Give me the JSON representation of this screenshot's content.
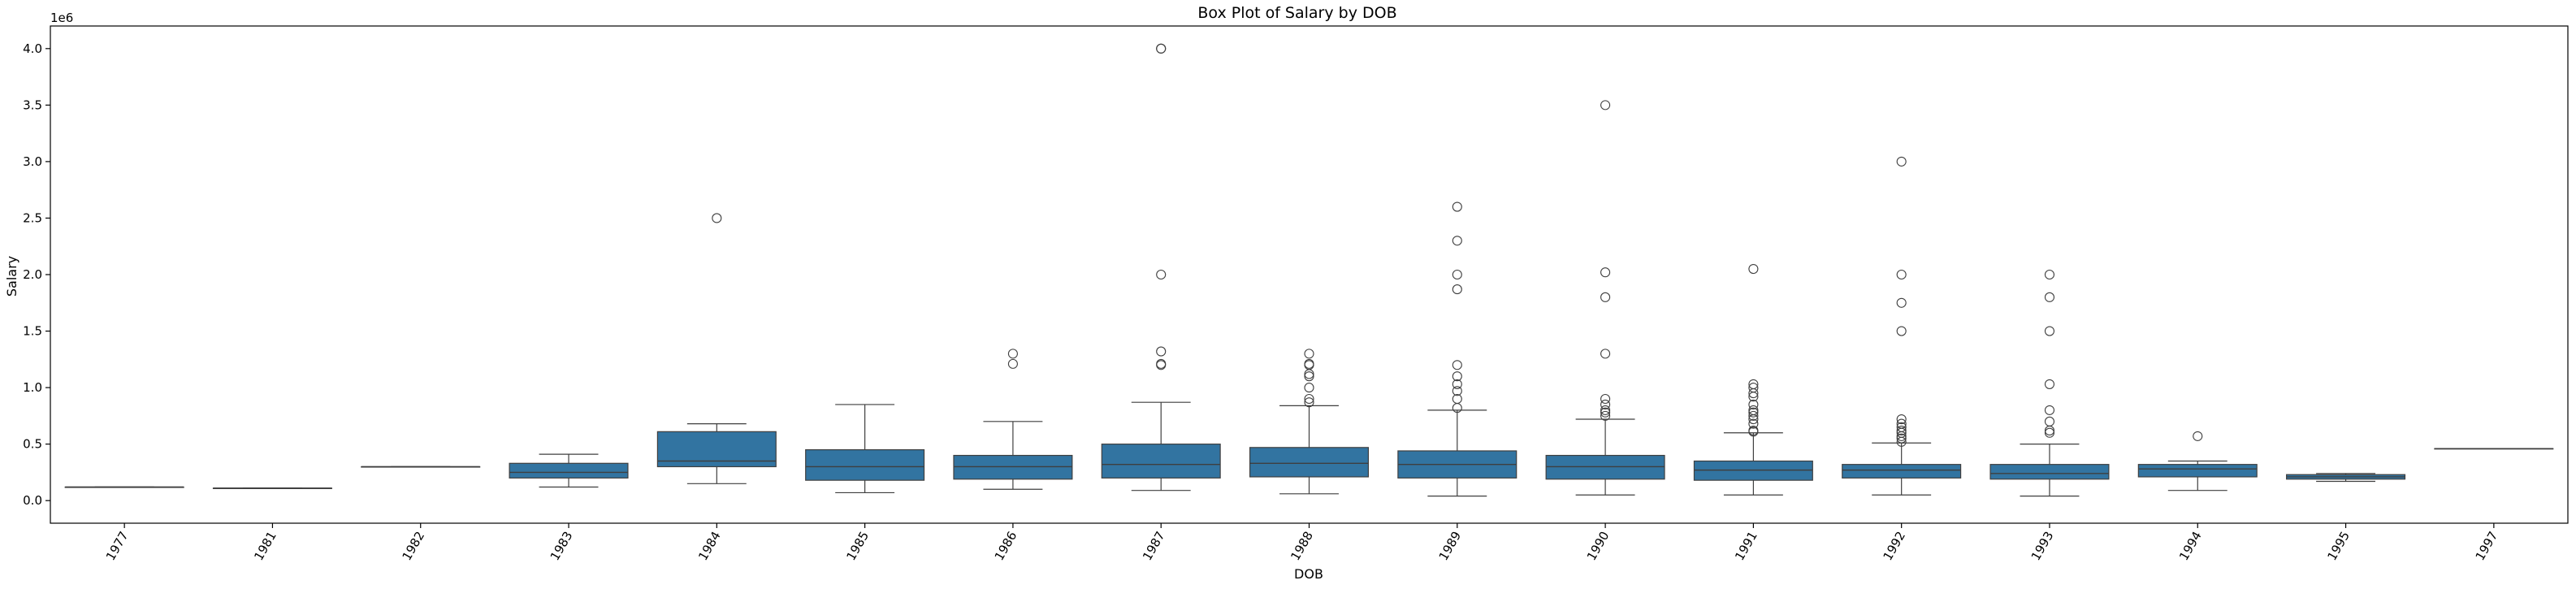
{
  "chart_data": {
    "type": "box",
    "title": "Box Plot of Salary by DOB",
    "xlabel": "DOB",
    "ylabel": "Salary",
    "y_offset_label": "1e6",
    "ylim": [
      -0.2,
      4.2
    ],
    "y_ticks": [
      0.0,
      0.5,
      1.0,
      1.5,
      2.0,
      2.5,
      3.0,
      3.5,
      4.0
    ],
    "y_tick_labels": [
      "0.0",
      "0.5",
      "1.0",
      "1.5",
      "2.0",
      "2.5",
      "3.0",
      "3.5",
      "4.0"
    ],
    "grid": false,
    "box_color": "#3274a1",
    "edge_color": "#3f3f3f",
    "categories": [
      "1977",
      "1981",
      "1982",
      "1983",
      "1984",
      "1985",
      "1986",
      "1987",
      "1988",
      "1989",
      "1990",
      "1991",
      "1992",
      "1993",
      "1994",
      "1995",
      "1997"
    ],
    "boxes": [
      {
        "whislo": 0.12,
        "q1": 0.12,
        "med": 0.12,
        "q3": 0.12,
        "whishi": 0.12,
        "fliers": []
      },
      {
        "whislo": 0.11,
        "q1": 0.11,
        "med": 0.11,
        "q3": 0.11,
        "whishi": 0.11,
        "fliers": []
      },
      {
        "whislo": 0.3,
        "q1": 0.3,
        "med": 0.3,
        "q3": 0.3,
        "whishi": 0.3,
        "fliers": []
      },
      {
        "whislo": 0.12,
        "q1": 0.2,
        "med": 0.25,
        "q3": 0.33,
        "whishi": 0.41,
        "fliers": []
      },
      {
        "whislo": 0.15,
        "q1": 0.3,
        "med": 0.35,
        "q3": 0.61,
        "whishi": 0.68,
        "fliers": [
          2.5
        ]
      },
      {
        "whislo": 0.07,
        "q1": 0.18,
        "med": 0.3,
        "q3": 0.45,
        "whishi": 0.85,
        "fliers": []
      },
      {
        "whislo": 0.1,
        "q1": 0.19,
        "med": 0.3,
        "q3": 0.4,
        "whishi": 0.7,
        "fliers": [
          1.21,
          1.3
        ]
      },
      {
        "whislo": 0.09,
        "q1": 0.2,
        "med": 0.32,
        "q3": 0.5,
        "whishi": 0.87,
        "fliers": [
          1.2,
          1.21,
          1.32,
          2.0,
          4.0,
          4.0
        ]
      },
      {
        "whislo": 0.06,
        "q1": 0.21,
        "med": 0.33,
        "q3": 0.47,
        "whishi": 0.84,
        "fliers": [
          0.87,
          0.9,
          1.0,
          1.1,
          1.12,
          1.2,
          1.21,
          1.3
        ]
      },
      {
        "whislo": 0.04,
        "q1": 0.2,
        "med": 0.32,
        "q3": 0.44,
        "whishi": 0.8,
        "fliers": [
          0.82,
          0.9,
          0.97,
          1.03,
          1.1,
          1.2,
          1.87,
          2.0,
          2.3,
          2.6
        ]
      },
      {
        "whislo": 0.05,
        "q1": 0.19,
        "med": 0.3,
        "q3": 0.4,
        "whishi": 0.72,
        "fliers": [
          0.75,
          0.78,
          0.8,
          0.85,
          0.9,
          1.3,
          1.8,
          2.02,
          3.5
        ]
      },
      {
        "whislo": 0.05,
        "q1": 0.18,
        "med": 0.27,
        "q3": 0.35,
        "whishi": 0.6,
        "fliers": [
          0.61,
          0.62,
          0.68,
          0.72,
          0.75,
          0.78,
          0.8,
          0.85,
          0.92,
          0.95,
          1.0,
          1.03,
          2.05
        ]
      },
      {
        "whislo": 0.05,
        "q1": 0.2,
        "med": 0.27,
        "q3": 0.32,
        "whishi": 0.51,
        "fliers": [
          0.52,
          0.55,
          0.57,
          0.6,
          0.62,
          0.65,
          0.68,
          0.72,
          1.5,
          1.75,
          2.0,
          3.0
        ]
      },
      {
        "whislo": 0.04,
        "q1": 0.19,
        "med": 0.24,
        "q3": 0.32,
        "whishi": 0.5,
        "fliers": [
          0.6,
          0.62,
          0.7,
          0.8,
          1.03,
          1.5,
          1.8,
          2.0
        ]
      },
      {
        "whislo": 0.09,
        "q1": 0.21,
        "med": 0.28,
        "q3": 0.32,
        "whishi": 0.35,
        "fliers": [
          0.57
        ]
      },
      {
        "whislo": 0.17,
        "q1": 0.19,
        "med": 0.21,
        "q3": 0.23,
        "whishi": 0.24,
        "fliers": []
      },
      {
        "whislo": 0.46,
        "q1": 0.46,
        "med": 0.46,
        "q3": 0.46,
        "whishi": 0.46,
        "fliers": []
      }
    ]
  }
}
